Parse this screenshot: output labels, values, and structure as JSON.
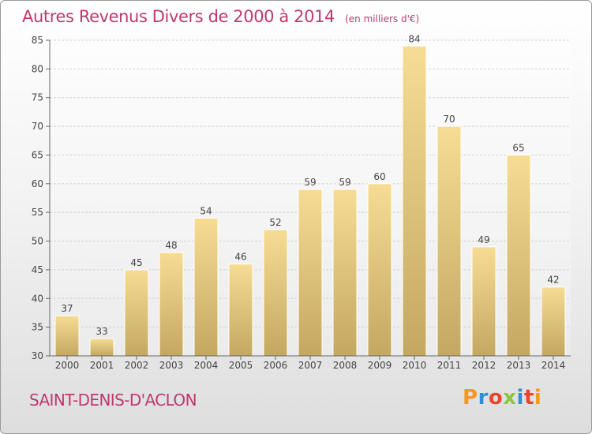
{
  "header": {
    "title": "Autres Revenus Divers de 2000 à 2014",
    "unit": "(en milliers d'€)"
  },
  "footer": {
    "commune": "SAINT-DENIS-D'ACLON",
    "logo_text": "Proxiti",
    "logo_colors": [
      "#f39a1e",
      "#2f8fd6",
      "#e8452c",
      "#8cc63e",
      "#2f8fd6",
      "#e8452c",
      "#f39a1e"
    ]
  },
  "chart_data": {
    "type": "bar",
    "title": "Autres Revenus Divers de 2000 à 2014",
    "subtitle": "(en milliers d'€)",
    "categories": [
      "2000",
      "2001",
      "2002",
      "2003",
      "2004",
      "2005",
      "2006",
      "2007",
      "2008",
      "2009",
      "2010",
      "2011",
      "2012",
      "2013",
      "2014"
    ],
    "values": [
      37,
      33,
      45,
      48,
      54,
      46,
      52,
      59,
      59,
      60,
      84,
      70,
      49,
      65,
      42
    ],
    "ylim": [
      30,
      85
    ],
    "yticks": [
      30,
      35,
      40,
      45,
      50,
      55,
      60,
      65,
      70,
      75,
      80,
      85
    ],
    "xlabel": "",
    "ylabel": "",
    "grid": true,
    "bar_colors": {
      "top": "#f7dc93",
      "bottom": "#c4a862",
      "edge": "#ffffff"
    }
  }
}
